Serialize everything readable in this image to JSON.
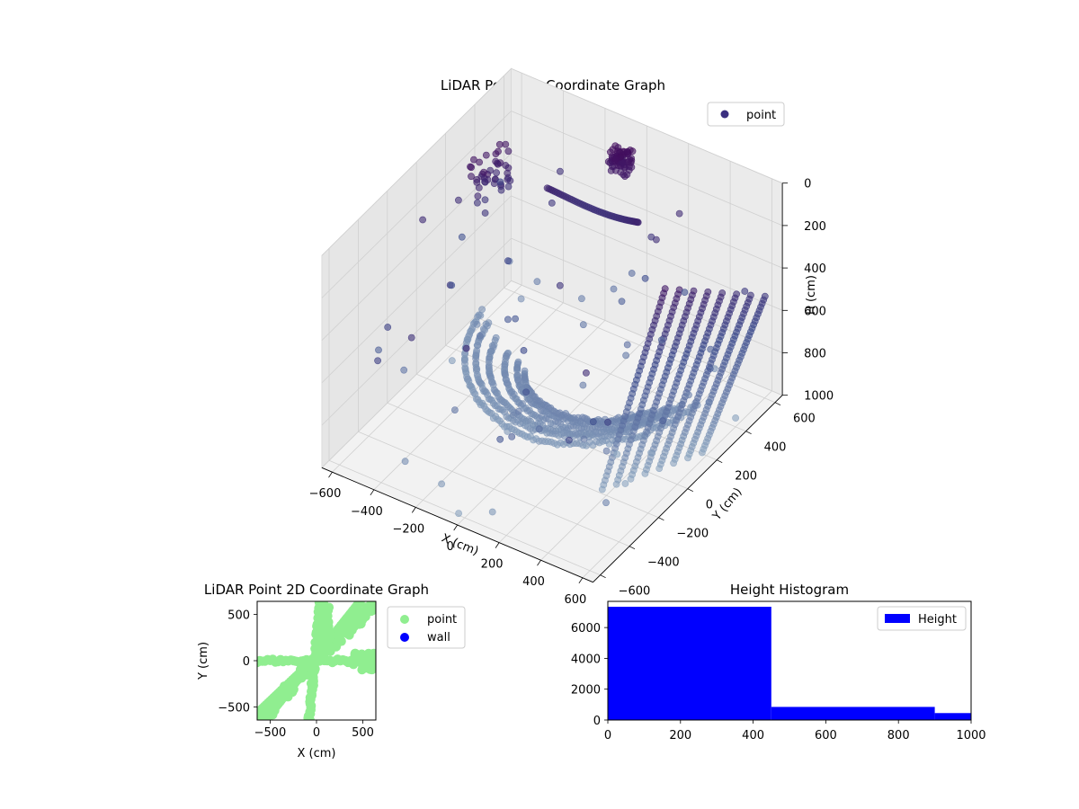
{
  "chart_data": [
    {
      "type": "scatter",
      "projection": "3d",
      "title": "LiDAR Point 3D Coordinate Graph",
      "xlabel": "X (cm)",
      "ylabel": "Y (cm)",
      "zlabel": "H (cm)",
      "xlim": [
        -650,
        650
      ],
      "ylim": [
        -650,
        650
      ],
      "zlim": [
        1000,
        0
      ],
      "z_inverted": true,
      "xticks": [
        "−600",
        "−400",
        "−200",
        "0",
        "200",
        "400",
        "600"
      ],
      "yticks": [
        "−600",
        "−400",
        "−200",
        "0",
        "200",
        "400",
        "600"
      ],
      "zticks": [
        "0",
        "200",
        "400",
        "600",
        "800",
        "1000"
      ],
      "grid": true,
      "legend": {
        "position": "top-right",
        "entries": [
          "point"
        ]
      },
      "series": [
        {
          "name": "point",
          "color_map": "viridis-dark",
          "alpha": 0.6
        }
      ],
      "colors": {
        "high": "#440154",
        "mid": "#3b4a8c",
        "low": "#7e9ab5"
      }
    },
    {
      "type": "scatter",
      "title": "LiDAR Point 2D Coordinate Graph",
      "xlabel": "X (cm)",
      "ylabel": "Y (cm)",
      "xlim": [
        -640,
        640
      ],
      "ylim": [
        -640,
        640
      ],
      "xticks": [
        "−500",
        "0",
        "500"
      ],
      "yticks": [
        "500",
        "0",
        "−500"
      ],
      "legend": {
        "position": "outside-right",
        "entries": [
          "point",
          "wall"
        ]
      },
      "series": [
        {
          "name": "point",
          "color": "#90ee90"
        },
        {
          "name": "wall",
          "color": "#0000ff"
        }
      ]
    },
    {
      "type": "bar",
      "subtype": "histogram",
      "title": "Height Histogram",
      "xlim": [
        0,
        1000
      ],
      "ylim": [
        0,
        7700
      ],
      "xticks": [
        "0",
        "200",
        "400",
        "600",
        "800",
        "1000"
      ],
      "yticks": [
        "0",
        "2000",
        "4000",
        "6000"
      ],
      "bins": [
        {
          "x0": 0,
          "x1": 450,
          "value": 7350
        },
        {
          "x0": 450,
          "x1": 900,
          "value": 850
        },
        {
          "x0": 900,
          "x1": 1000,
          "value": 450
        }
      ],
      "legend": {
        "position": "top-right",
        "entries": [
          "Height"
        ]
      },
      "series": [
        {
          "name": "Height",
          "color": "#0000ff"
        }
      ]
    }
  ]
}
